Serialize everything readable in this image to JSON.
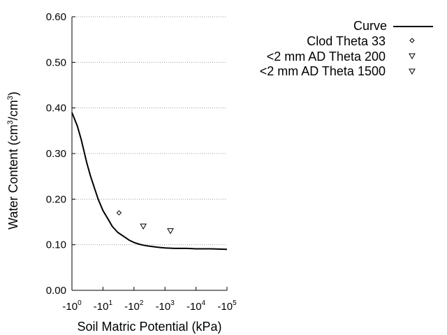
{
  "chart_data": {
    "type": "scatter",
    "xlabel": "Soil Matric Potential (kPa)",
    "ylabel": "Water Content (cm3/cm3)",
    "ylabel_parts": {
      "pre": "Water Content (cm",
      "sup1": "3",
      "mid": "/cm",
      "sup2": "3",
      "post": ")"
    },
    "x_scale": "log",
    "xlim": [
      1,
      100000
    ],
    "ylim": [
      0.0,
      0.6
    ],
    "grid": {
      "y": true,
      "style": "dotted"
    },
    "x_ticks": [
      {
        "value": 1,
        "base": "-10",
        "exp": "0"
      },
      {
        "value": 10,
        "base": "-10",
        "exp": "1"
      },
      {
        "value": 100,
        "base": "-10",
        "exp": "2"
      },
      {
        "value": 1000,
        "base": "-10",
        "exp": "3"
      },
      {
        "value": 10000,
        "base": "-10",
        "exp": "4"
      },
      {
        "value": 100000,
        "base": "-10",
        "exp": "5"
      }
    ],
    "y_ticks": [
      "0.00",
      "0.10",
      "0.20",
      "0.30",
      "0.40",
      "0.50",
      "0.60"
    ],
    "legend_position": "top-right, outside plot",
    "series": [
      {
        "name": "Curve",
        "kind": "line",
        "color": "#000000",
        "x": [
          1,
          1.5,
          2,
          3,
          4,
          5,
          7,
          10,
          15,
          20,
          30,
          50,
          70,
          100,
          150,
          200,
          300,
          500,
          700,
          1000,
          2000,
          5000,
          10000,
          30000,
          100000
        ],
        "y": [
          0.39,
          0.36,
          0.33,
          0.28,
          0.25,
          0.23,
          0.2,
          0.175,
          0.155,
          0.14,
          0.127,
          0.117,
          0.11,
          0.105,
          0.101,
          0.099,
          0.097,
          0.095,
          0.094,
          0.093,
          0.092,
          0.092,
          0.091,
          0.091,
          0.09
        ]
      },
      {
        "name": "Clod Theta 33",
        "kind": "points",
        "marker": "diamond",
        "x": [
          33
        ],
        "y": [
          0.17
        ]
      },
      {
        "name": "<2 mm AD Theta 200",
        "kind": "points",
        "marker": "triangle-down",
        "x": [
          200
        ],
        "y": [
          0.14
        ]
      },
      {
        "name": "<2 mm AD Theta 1500",
        "kind": "points",
        "marker": "triangle-down",
        "x": [
          1500
        ],
        "y": [
          0.13
        ]
      }
    ]
  }
}
